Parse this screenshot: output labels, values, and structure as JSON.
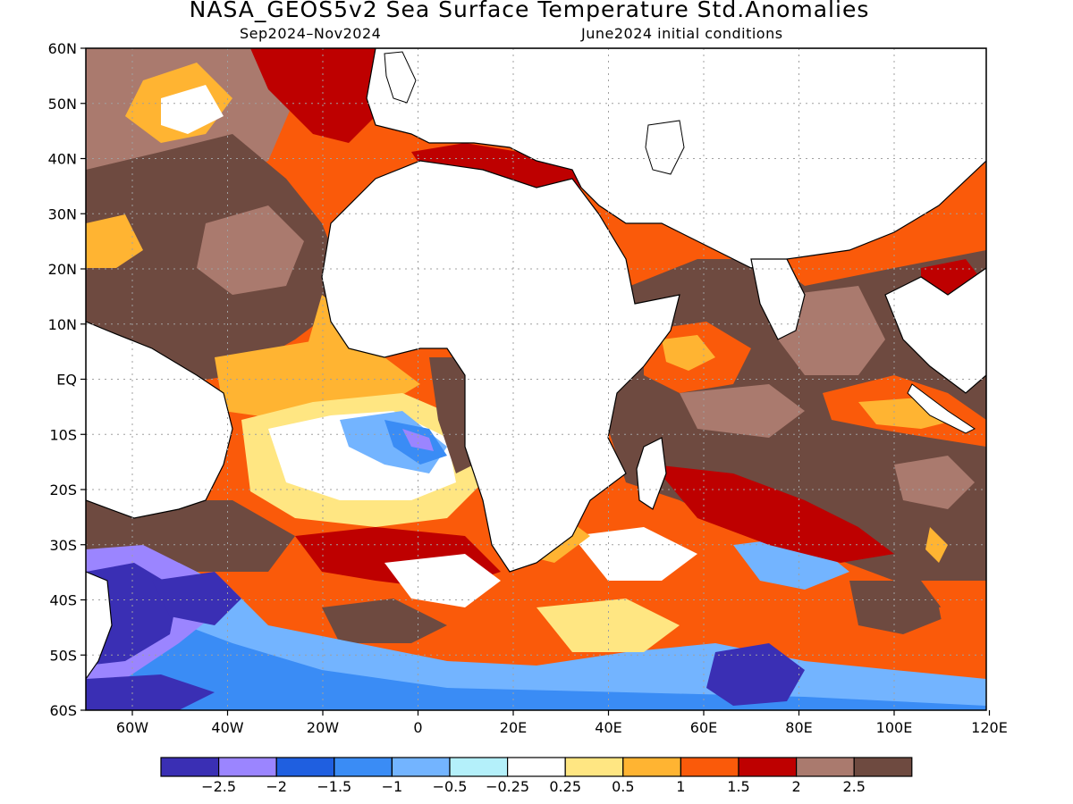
{
  "title": "NASA_GEOS5v2 Sea Surface Temperature Std.Anomalies",
  "period": "Sep2024–Nov2024",
  "initial_conditions": "June2024 initial conditions",
  "lat_ticks": [
    "60N",
    "50N",
    "40N",
    "30N",
    "20N",
    "10N",
    "EQ",
    "10S",
    "20S",
    "30S",
    "40S",
    "50S",
    "60S"
  ],
  "lon_ticks": [
    "60W",
    "40W",
    "20W",
    "0",
    "20E",
    "40E",
    "60E",
    "80E",
    "100E",
    "120E"
  ],
  "colorbar": {
    "colors": [
      "#3a2fb4",
      "#9b85ff",
      "#1f5fe0",
      "#3a8cf5",
      "#73b4ff",
      "#b4f0fa",
      "#ffffff",
      "#ffe682",
      "#ffb432",
      "#fa5a0a",
      "#be0000",
      "#aa7a6e",
      "#6e4a40"
    ],
    "labels": [
      "−2.5",
      "−2",
      "−1.5",
      "−1",
      "−0.5",
      "−0.25",
      "0.25",
      "0.5",
      "1",
      "1.5",
      "2",
      "2.5"
    ]
  },
  "colors": {
    "land": "#ffffff",
    "coast": "#000000",
    "grid": "#a0a0a0"
  }
}
